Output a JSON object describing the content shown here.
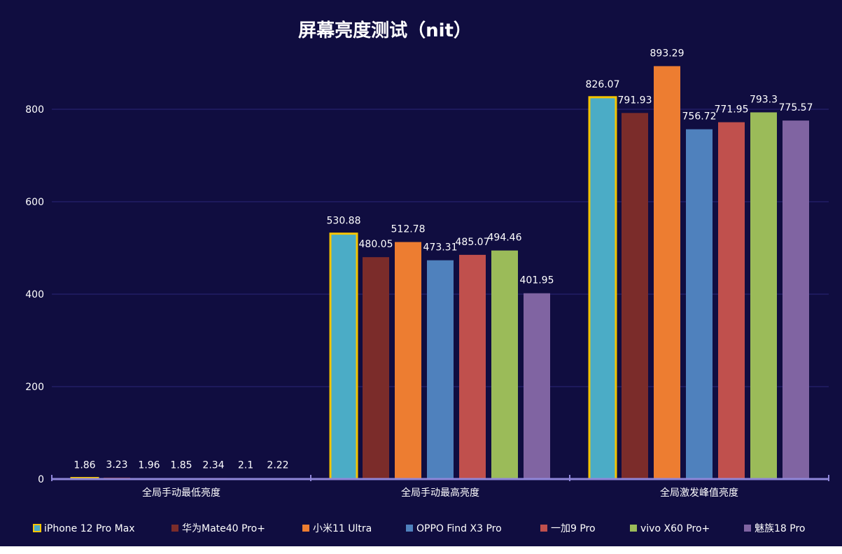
{
  "chart_data": {
    "type": "bar",
    "title": "屏幕亮度测试（nit）",
    "xlabel": "",
    "ylabel": "",
    "categories": [
      "全局手动最低亮度",
      "全局手动最高亮度",
      "全局激发峰值亮度"
    ],
    "ylim": [
      0,
      900
    ],
    "yticks": [
      0,
      200,
      400,
      600,
      800
    ],
    "grid": true,
    "legend_position": "bottom",
    "highlighted_series": "iPhone 12 Pro Max",
    "highlight_color": "#f5c400",
    "series": [
      {
        "name": "iPhone 12 Pro Max",
        "color": "#4bacc6",
        "values": [
          1.86,
          530.88,
          826.07
        ]
      },
      {
        "name": "华为Mate40 Pro+",
        "color": "#7b2c2a",
        "values": [
          3.23,
          480.05,
          791.93
        ]
      },
      {
        "name": "小米11 Ultra",
        "color": "#ed7d31",
        "values": [
          1.96,
          512.78,
          893.29
        ]
      },
      {
        "name": "OPPO Find X3 Pro",
        "color": "#4f81bd",
        "values": [
          1.85,
          473.31,
          756.72
        ]
      },
      {
        "name": "一加9 Pro",
        "color": "#c0504d",
        "values": [
          2.34,
          485.07,
          771.95
        ]
      },
      {
        "name": "vivo X60 Pro+",
        "color": "#9bbb59",
        "values": [
          2.1,
          494.46,
          793.3
        ]
      },
      {
        "name": "魅族18 Pro",
        "color": "#8064a2",
        "values": [
          2.22,
          401.95,
          775.57
        ]
      }
    ],
    "colors": {
      "background": "#100d40",
      "gridline": "#2a2578",
      "axis": "#8f86d9",
      "text": "#ffffff"
    }
  }
}
